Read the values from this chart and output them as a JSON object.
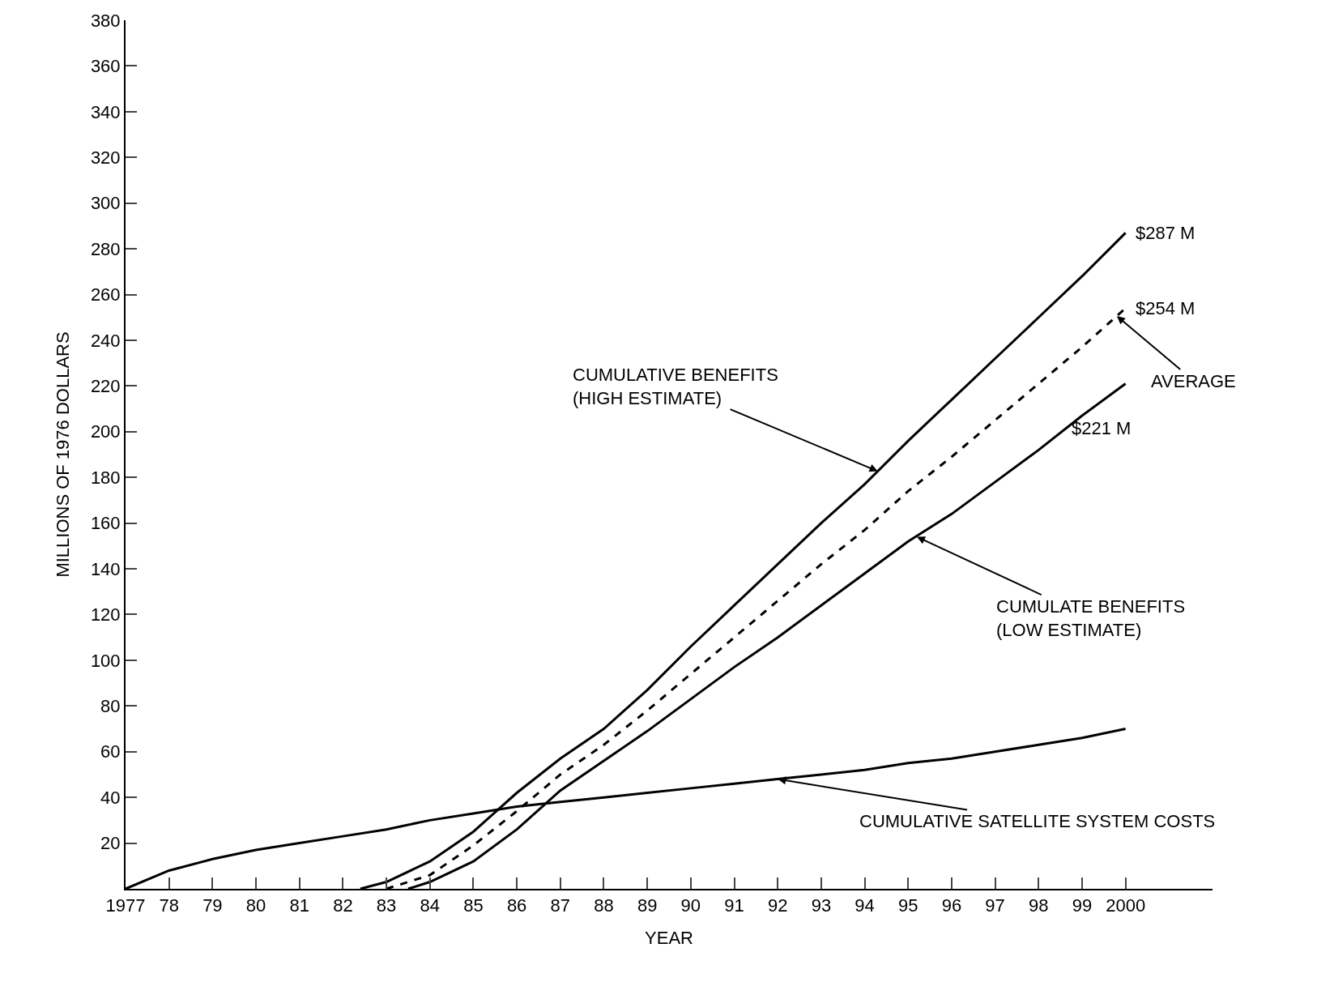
{
  "chart_data": {
    "type": "line",
    "xlabel": "YEAR",
    "ylabel": "MILLIONS OF 1976 DOLLARS",
    "xlim": [
      1977,
      2002
    ],
    "ylim": [
      0,
      380
    ],
    "xticks": [
      {
        "value": 1977,
        "label": "1977"
      },
      {
        "value": 1978,
        "label": "78"
      },
      {
        "value": 1979,
        "label": "79"
      },
      {
        "value": 1980,
        "label": "80"
      },
      {
        "value": 1981,
        "label": "81"
      },
      {
        "value": 1982,
        "label": "82"
      },
      {
        "value": 1983,
        "label": "83"
      },
      {
        "value": 1984,
        "label": "84"
      },
      {
        "value": 1985,
        "label": "85"
      },
      {
        "value": 1986,
        "label": "86"
      },
      {
        "value": 1987,
        "label": "87"
      },
      {
        "value": 1988,
        "label": "88"
      },
      {
        "value": 1989,
        "label": "89"
      },
      {
        "value": 1990,
        "label": "90"
      },
      {
        "value": 1991,
        "label": "91"
      },
      {
        "value": 1992,
        "label": "92"
      },
      {
        "value": 1993,
        "label": "93"
      },
      {
        "value": 1994,
        "label": "94"
      },
      {
        "value": 1995,
        "label": "95"
      },
      {
        "value": 1996,
        "label": "96"
      },
      {
        "value": 1997,
        "label": "97"
      },
      {
        "value": 1998,
        "label": "98"
      },
      {
        "value": 1999,
        "label": "99"
      },
      {
        "value": 2000,
        "label": "2000"
      }
    ],
    "yticks": [
      20,
      40,
      60,
      80,
      100,
      120,
      140,
      160,
      180,
      200,
      220,
      240,
      260,
      280,
      300,
      320,
      340,
      360,
      380
    ],
    "grid": false,
    "marker": "none",
    "series": [
      {
        "color": "#000000",
        "line_style": "solid",
        "x": [
          1982.4,
          1983,
          1984,
          1985,
          1986,
          1987,
          1988,
          1989,
          1990,
          1991,
          1992,
          1993,
          1994,
          1995,
          1996,
          1997,
          1998,
          1999,
          2000
        ],
        "values": [
          0,
          3,
          12,
          25,
          42,
          57,
          70,
          87,
          106,
          124,
          142,
          160,
          177,
          196,
          214,
          232,
          250,
          268,
          287
        ]
      },
      {
        "color": "#000000",
        "line_style": "dashed",
        "x": [
          1983,
          1984,
          1985,
          1986,
          1987,
          1988,
          1989,
          1990,
          1991,
          1992,
          1993,
          1994,
          1995,
          1996,
          1997,
          1998,
          1999,
          2000
        ],
        "values": [
          0,
          6,
          19,
          34,
          50,
          63,
          78,
          94,
          110,
          126,
          142,
          157,
          174,
          189,
          205,
          221,
          237,
          254
        ]
      },
      {
        "color": "#000000",
        "line_style": "solid",
        "x": [
          1983.5,
          1984,
          1985,
          1986,
          1987,
          1988,
          1989,
          1990,
          1991,
          1992,
          1993,
          1994,
          1995,
          1996,
          1997,
          1998,
          1999,
          2000
        ],
        "values": [
          0,
          3,
          12,
          26,
          43,
          56,
          69,
          83,
          97,
          110,
          124,
          138,
          152,
          164,
          178,
          192,
          207,
          221
        ]
      },
      {
        "color": "#000000",
        "line_style": "solid",
        "x": [
          1977,
          1978,
          1979,
          1980,
          1981,
          1982,
          1983,
          1984,
          1985,
          1986,
          1987,
          1988,
          1989,
          1990,
          1991,
          1992,
          1993,
          1994,
          1995,
          1996,
          1997,
          1998,
          1999,
          2000
        ],
        "values": [
          0,
          8,
          13,
          17,
          20,
          23,
          26,
          30,
          33,
          36,
          38,
          40,
          42,
          44,
          46,
          48,
          50,
          52,
          55,
          57,
          60,
          63,
          66,
          70
        ]
      }
    ],
    "annotations": [
      {
        "text": "CUMULATIVE BENEFITS\n(HIGH ESTIMATE)",
        "x": 1994.3,
        "y": 182.7
      },
      {
        "text": "$287 M",
        "x": 2000,
        "y": 287
      },
      {
        "text": "$254 M",
        "x": 2000,
        "y": 254
      },
      {
        "text": "AVERAGE",
        "x": 1999.8,
        "y": 250.6
      },
      {
        "text": "$221 M",
        "x": 2000,
        "y": 221
      },
      {
        "text": "CUMULATE BENEFITS\n(LOW ESTIMATE)",
        "x": 1995.2,
        "y": 154
      },
      {
        "text": "CUMULATIVE SATELLITE SYSTEM COSTS",
        "x": 1992,
        "y": 48
      }
    ]
  }
}
